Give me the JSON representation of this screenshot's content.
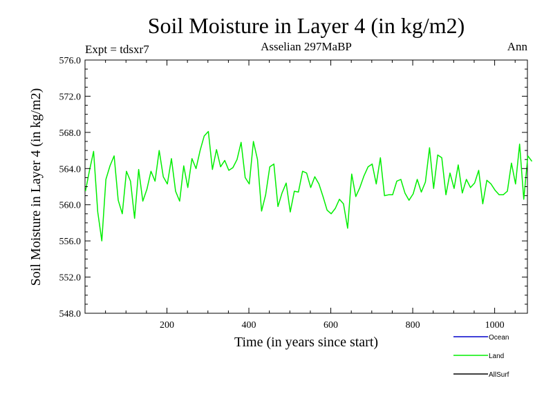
{
  "chart_data": {
    "type": "line",
    "title": "Soil Moisture in Layer 4 (in kg/m2)",
    "subtitle_left": "Expt = tdsxr7",
    "subtitle_center": "Asselian 297MaBP",
    "subtitle_right": "Ann",
    "xlabel": "Time (in years since start)",
    "ylabel": "Soil Moisture in Layer 4 (in kg/m2)",
    "xlim": [
      0,
      1080
    ],
    "ylim": [
      548.0,
      576.0
    ],
    "x_ticks": [
      200,
      400,
      600,
      800,
      1000
    ],
    "x_tick_labels": [
      "200",
      "400",
      "600",
      "800",
      "1000"
    ],
    "y_ticks": [
      548,
      552,
      556,
      560,
      564,
      568,
      572,
      576
    ],
    "y_tick_labels": [
      "548.0",
      "552.0",
      "556.0",
      "560.0",
      "564.0",
      "568.0",
      "572.0",
      "576.0"
    ],
    "legend_position": "bottom-right, outside plot",
    "series": [
      {
        "name": "Ocean",
        "color": "#0000cc",
        "values": []
      },
      {
        "name": "Land",
        "color": "#00ee00",
        "x_start": 1,
        "x_step": 10,
        "values": [
          561.5,
          563.8,
          565.9,
          559.2,
          556.0,
          562.8,
          564.3,
          565.4,
          560.5,
          559.0,
          563.7,
          562.6,
          558.5,
          563.9,
          560.4,
          561.7,
          563.7,
          562.6,
          566.0,
          563.1,
          562.3,
          565.1,
          561.5,
          560.4,
          564.3,
          561.9,
          565.1,
          564.0,
          566.0,
          567.6,
          568.1,
          563.9,
          566.1,
          564.2,
          564.9,
          563.8,
          564.1,
          565.0,
          566.9,
          563.0,
          562.3,
          567.0,
          565.0,
          559.3,
          561.1,
          564.2,
          564.5,
          559.8,
          561.3,
          562.4,
          559.2,
          561.5,
          561.4,
          563.7,
          563.5,
          561.9,
          563.1,
          562.3,
          560.9,
          559.4,
          559.0,
          559.6,
          560.6,
          560.1,
          557.4,
          563.4,
          560.9,
          561.9,
          563.2,
          564.2,
          564.5,
          562.3,
          565.2,
          561.0,
          561.1,
          561.1,
          562.6,
          562.8,
          561.3,
          560.5,
          561.2,
          562.8,
          561.4,
          562.5,
          566.3,
          561.8,
          565.5,
          565.2,
          561.1,
          563.5,
          561.8,
          564.4,
          561.3,
          562.8,
          561.9,
          562.4,
          563.8,
          560.1,
          562.7,
          562.3,
          561.6,
          561.1,
          561.1,
          561.5,
          564.6,
          562.3,
          566.7,
          560.6,
          565.4,
          564.8
        ]
      },
      {
        "name": "AllSurf",
        "color": "#000000",
        "values": []
      }
    ]
  }
}
